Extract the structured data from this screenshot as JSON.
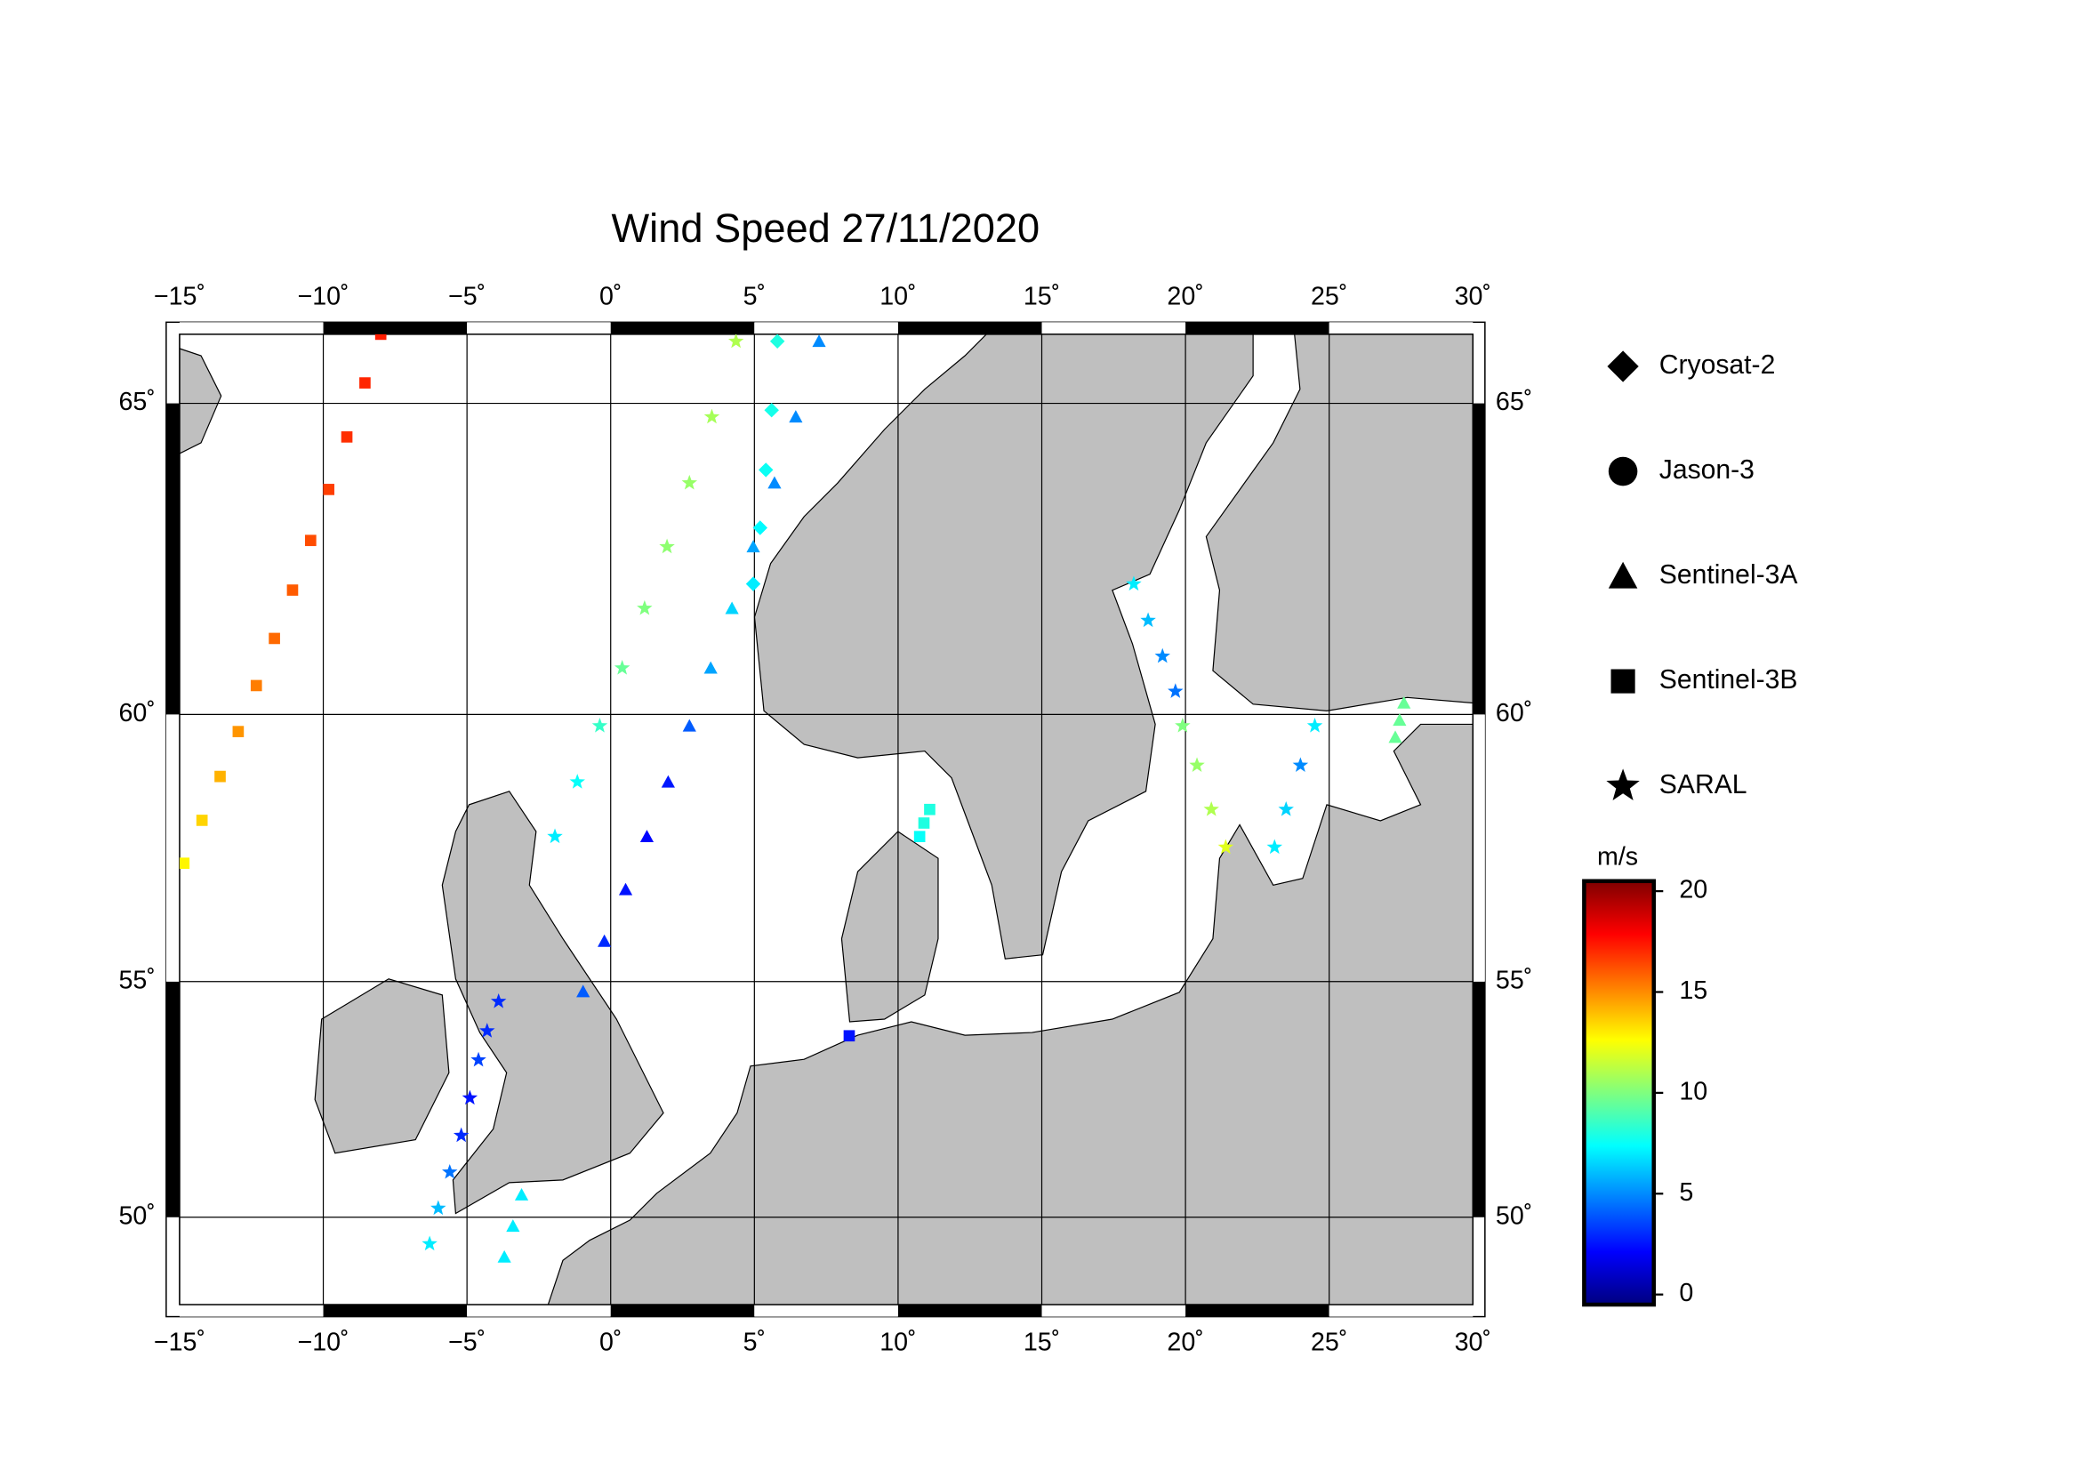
{
  "chart_data": {
    "type": "map",
    "title": "Wind Speed 27/11/2020",
    "xlim": [
      -15,
      30
    ],
    "ylim": [
      48,
      66
    ],
    "xticks": [
      {
        "value": -15,
        "label": "−15˚"
      },
      {
        "value": -10,
        "label": "−10˚"
      },
      {
        "value": -5,
        "label": "−5˚"
      },
      {
        "value": 0,
        "label": "0˚"
      },
      {
        "value": 5,
        "label": "5˚"
      },
      {
        "value": 10,
        "label": "10˚"
      },
      {
        "value": 15,
        "label": "15˚"
      },
      {
        "value": 20,
        "label": "20˚"
      },
      {
        "value": 25,
        "label": "25˚"
      },
      {
        "value": 30,
        "label": "30˚"
      }
    ],
    "yticks": [
      {
        "value": 50,
        "label": "50˚"
      },
      {
        "value": 55,
        "label": "55˚"
      },
      {
        "value": 60,
        "label": "60˚"
      },
      {
        "value": 65,
        "label": "65˚"
      }
    ],
    "grid": true,
    "series": [
      {
        "name": "Cryosat-2",
        "marker": "diamond",
        "lon": [
          4.96,
          5.2,
          5.4,
          5.6,
          5.8
        ],
        "lat": [
          62.2,
          63.1,
          64.0,
          64.9,
          65.9
        ],
        "values": [
          7.0,
          7.3,
          7.6,
          7.8,
          8.0
        ]
      },
      {
        "name": "Jason-3",
        "marker": "circle",
        "lon": [],
        "lat": [],
        "values": []
      },
      {
        "name": "Sentinel-3A",
        "marker": "triangle",
        "lon": [
          -0.96,
          -0.22,
          0.52,
          1.26,
          2.0,
          2.74,
          3.48,
          4.22,
          4.96,
          5.7,
          6.44,
          7.25,
          -3.7,
          -3.4,
          -3.1,
          27.3,
          27.45,
          27.6
        ],
        "lat": [
          54.8,
          55.8,
          56.8,
          57.8,
          58.8,
          59.8,
          60.8,
          61.8,
          62.8,
          63.8,
          64.8,
          65.9,
          49.1,
          49.8,
          50.5,
          59.6,
          59.9,
          60.2
        ],
        "values": [
          4.0,
          3.0,
          2.5,
          2.2,
          2.6,
          4.0,
          5.5,
          6.5,
          5.5,
          5.0,
          5.0,
          5.0,
          7.0,
          7.0,
          7.0,
          9.5,
          9.5,
          9.5
        ]
      },
      {
        "name": "Sentinel-3B",
        "marker": "square",
        "lon": [
          -14.85,
          -14.22,
          -13.59,
          -12.96,
          -12.33,
          -11.7,
          -11.07,
          -10.44,
          -9.81,
          -9.18,
          -8.55,
          -8.0,
          10.75,
          10.9,
          11.1,
          8.3
        ],
        "lat": [
          57.3,
          58.1,
          58.9,
          59.7,
          60.5,
          61.3,
          62.1,
          62.9,
          63.7,
          64.5,
          65.3,
          66.0,
          57.8,
          58.05,
          58.3,
          53.9
        ],
        "values": [
          12.8,
          13.5,
          14.2,
          14.8,
          15.3,
          15.7,
          16.0,
          16.3,
          16.6,
          16.9,
          17.1,
          17.3,
          7.5,
          8.0,
          8.0,
          2.5
        ]
      },
      {
        "name": "SARAL",
        "marker": "star",
        "lon": [
          -1.94,
          -1.16,
          -0.38,
          0.4,
          1.18,
          1.96,
          2.74,
          3.52,
          4.36,
          -6.3,
          -6.0,
          -5.6,
          -5.2,
          -4.9,
          -4.6,
          -4.3,
          -3.9,
          18.2,
          18.7,
          19.2,
          19.65,
          19.9,
          20.4,
          20.9,
          21.4,
          23.1,
          23.5,
          24.0,
          24.5
        ],
        "lat": [
          57.8,
          58.8,
          59.8,
          60.8,
          61.8,
          62.8,
          63.8,
          64.8,
          65.9,
          49.4,
          50.2,
          51.0,
          51.8,
          52.6,
          53.4,
          54.0,
          54.6,
          62.2,
          61.6,
          61.0,
          60.4,
          59.8,
          59.1,
          58.3,
          57.6,
          57.6,
          58.3,
          59.1,
          59.8
        ],
        "values": [
          7.0,
          7.5,
          8.5,
          9.5,
          10.0,
          10.3,
          10.5,
          10.8,
          11.0,
          7.0,
          6.0,
          4.5,
          3.0,
          2.5,
          3.5,
          3.0,
          3.0,
          7.0,
          6.0,
          5.0,
          4.5,
          10.0,
          10.5,
          11.0,
          12.0,
          7.0,
          6.5,
          5.0,
          7.0
        ]
      }
    ],
    "colorbar": {
      "label": "m/s",
      "lim": [
        -0.5,
        20.5
      ],
      "ticks": [
        0,
        5,
        10,
        15,
        20
      ],
      "colors": [
        "#00007f",
        "#0000ff",
        "#007fff",
        "#00ffff",
        "#7fff7f",
        "#ffff00",
        "#ff7f00",
        "#ff0000",
        "#7f0000"
      ]
    }
  }
}
